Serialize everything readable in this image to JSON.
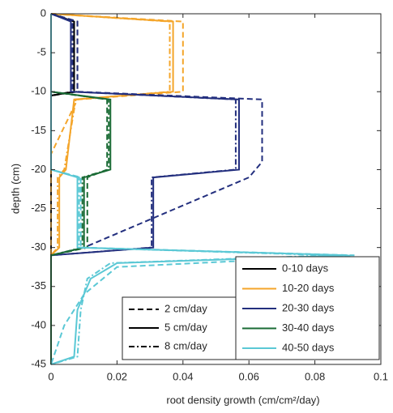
{
  "chart_data": {
    "type": "line",
    "xlabel": "root density growth (cm/cm²/day)",
    "ylabel": "depth (cm)",
    "xlim": [
      0,
      0.1
    ],
    "ylim": [
      -45,
      0
    ],
    "xticks": [
      0,
      0.02,
      0.04,
      0.06,
      0.08,
      0.1
    ],
    "yticks": [
      0,
      -5,
      -10,
      -15,
      -20,
      -25,
      -30,
      -35,
      -40,
      -45
    ],
    "styles": [
      {
        "name": "2 cm/day",
        "dash": "7,4"
      },
      {
        "name": "5 cm/day",
        "dash": "none"
      },
      {
        "name": "8 cm/day",
        "dash": "7,3,2,3"
      }
    ],
    "groups": [
      {
        "name": "0-10 days",
        "color": "#000000",
        "lines": [
          {
            "x": [
              0,
              0.008,
              0.008,
              0,
              0
            ],
            "y": [
              0,
              -1,
              -10,
              -10.5,
              -45
            ]
          },
          {
            "x": [
              0,
              0.007,
              0.007,
              0,
              0
            ],
            "y": [
              0,
              -1,
              -10,
              -10.5,
              -45
            ]
          },
          {
            "x": [
              0,
              0.0065,
              0.0065,
              0,
              0
            ],
            "y": [
              0,
              -1,
              -10,
              -10.5,
              -45
            ]
          }
        ]
      },
      {
        "name": "10-20 days",
        "color": "#f4a52a",
        "lines": [
          {
            "x": [
              0,
              0.04,
              0.04,
              0.008,
              0,
              0
            ],
            "y": [
              0,
              -1,
              -10,
              -11,
              -18,
              -45
            ]
          },
          {
            "x": [
              0,
              0.037,
              0.037,
              0.007,
              0.0045,
              0.0025,
              0.0025,
              0,
              0
            ],
            "y": [
              0,
              -1,
              -10,
              -11,
              -20,
              -21,
              -30,
              -31,
              -45
            ]
          },
          {
            "x": [
              0,
              0.036,
              0.036,
              0.0075,
              0.004,
              0.002,
              0.002,
              0,
              0
            ],
            "y": [
              0,
              -1,
              -10,
              -11,
              -20,
              -21,
              -30,
              -31,
              -45
            ]
          }
        ]
      },
      {
        "name": "20-30 days",
        "color": "#232f7e",
        "lines": [
          {
            "x": [
              0,
              0.008,
              0.008,
              0.064,
              0.064,
              0.06,
              0.01,
              0,
              0
            ],
            "y": [
              0,
              -1,
              -10,
              -11,
              -19,
              -21,
              -30,
              -31,
              -45
            ]
          },
          {
            "x": [
              0,
              0.006,
              0.006,
              0.057,
              0.057,
              0.031,
              0.031,
              0,
              0
            ],
            "y": [
              0,
              -1,
              -10,
              -11,
              -20,
              -21,
              -30,
              -31,
              -45
            ]
          },
          {
            "x": [
              0,
              0.0065,
              0.0065,
              0.056,
              0.056,
              0.0305,
              0.0305,
              0,
              0
            ],
            "y": [
              0,
              -1,
              -10,
              -11,
              -20,
              -21,
              -30,
              -31,
              -45
            ]
          }
        ]
      },
      {
        "name": "30-40 days",
        "color": "#1a6b35",
        "lines": [
          {
            "x": [
              0,
              0,
              0.017,
              0.017,
              0.011,
              0.011,
              0,
              0
            ],
            "y": [
              0,
              -10,
              -11,
              -20,
              -21,
              -30,
              -31,
              -45
            ]
          },
          {
            "x": [
              0,
              0,
              0.018,
              0.018,
              0.01,
              0.01,
              0,
              0
            ],
            "y": [
              0,
              -10,
              -11,
              -20,
              -21,
              -30,
              -31,
              -45
            ]
          },
          {
            "x": [
              0,
              0,
              0.0175,
              0.0175,
              0.0095,
              0.0095,
              0,
              0
            ],
            "y": [
              0,
              -10,
              -11,
              -20,
              -21,
              -30,
              -31,
              -45
            ]
          }
        ]
      },
      {
        "name": "40-50 days",
        "color": "#5bc8d5",
        "lines": [
          {
            "x": [
              0,
              0,
              0.009,
              0.009,
              0.092,
              0.02,
              0.01,
              0.004,
              0
            ],
            "y": [
              0,
              -20,
              -21,
              -30,
              -31,
              -32.5,
              -36,
              -40,
              -45
            ]
          },
          {
            "x": [
              0,
              0,
              0.008,
              0.008,
              0.09,
              0.02,
              0.012,
              0.008,
              0.007,
              0
            ],
            "y": [
              0,
              -20,
              -21,
              -30,
              -31,
              -32,
              -34,
              -38,
              -44,
              -45
            ]
          },
          {
            "x": [
              0,
              0,
              0.0085,
              0.0085,
              0.085,
              0.018,
              0.011,
              0.009,
              0.008,
              0
            ],
            "y": [
              0,
              -20,
              -21,
              -30,
              -31,
              -32,
              -34,
              -38,
              -44,
              -45
            ]
          }
        ]
      }
    ]
  }
}
